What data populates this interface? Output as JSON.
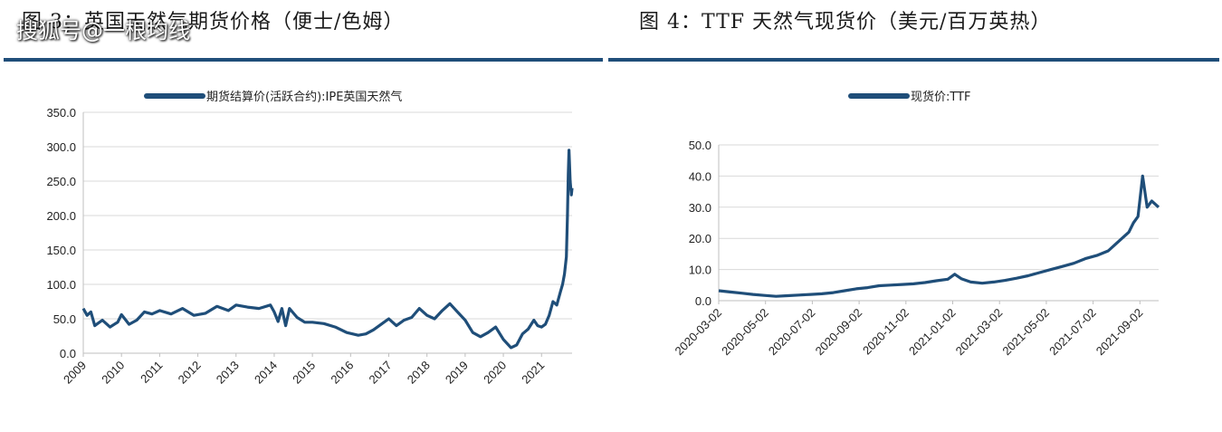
{
  "watermark": "搜狐号@一根均线",
  "charts": [
    {
      "figure_title": "图 3：英国天然气期货价格（便士/色姆）",
      "chart_data": {
        "type": "line",
        "legend_label": "期货结算价(活跃合约):IPE英国天然气",
        "x_ticks": [
          "2009",
          "2010",
          "2011",
          "2012",
          "2013",
          "2014",
          "2015",
          "2016",
          "2017",
          "2018",
          "2019",
          "2020",
          "2021"
        ],
        "y_ticks": [
          "350.0",
          "300.0",
          "250.0",
          "200.0",
          "150.0",
          "100.0",
          "50.0",
          "0.0"
        ],
        "ylim": [
          0,
          350
        ],
        "xlim": [
          2009.0,
          2021.8
        ],
        "grid": "horizontal",
        "color": "#1f4e79",
        "x": [
          2009.0,
          2009.1,
          2009.2,
          2009.3,
          2009.5,
          2009.7,
          2009.9,
          2010.0,
          2010.2,
          2010.4,
          2010.6,
          2010.8,
          2011.0,
          2011.3,
          2011.6,
          2011.9,
          2012.2,
          2012.5,
          2012.8,
          2013.0,
          2013.3,
          2013.6,
          2013.9,
          2014.0,
          2014.1,
          2014.2,
          2014.3,
          2014.4,
          2014.6,
          2014.8,
          2015.0,
          2015.3,
          2015.6,
          2015.9,
          2016.2,
          2016.4,
          2016.6,
          2016.8,
          2017.0,
          2017.2,
          2017.4,
          2017.6,
          2017.8,
          2018.0,
          2018.2,
          2018.4,
          2018.6,
          2018.8,
          2019.0,
          2019.2,
          2019.4,
          2019.6,
          2019.8,
          2020.0,
          2020.2,
          2020.35,
          2020.5,
          2020.65,
          2020.8,
          2020.9,
          2021.0,
          2021.1,
          2021.2,
          2021.3,
          2021.4,
          2021.5,
          2021.55,
          2021.6,
          2021.65,
          2021.68,
          2021.7,
          2021.72,
          2021.75,
          2021.78,
          2021.8
        ],
        "values": [
          65,
          55,
          60,
          40,
          48,
          38,
          45,
          56,
          42,
          48,
          60,
          57,
          62,
          57,
          65,
          55,
          58,
          68,
          62,
          70,
          67,
          65,
          70,
          60,
          46,
          65,
          40,
          65,
          52,
          45,
          45,
          43,
          38,
          30,
          26,
          28,
          34,
          42,
          50,
          40,
          48,
          52,
          65,
          55,
          50,
          62,
          72,
          60,
          48,
          30,
          24,
          30,
          38,
          20,
          8,
          12,
          28,
          35,
          48,
          40,
          38,
          42,
          55,
          75,
          70,
          90,
          100,
          115,
          140,
          200,
          260,
          295,
          250,
          230,
          240
        ]
      }
    },
    {
      "figure_title": "图 4：TTF 天然气现货价（美元/百万英热）",
      "chart_data": {
        "type": "line",
        "legend_label": "现货价:TTF",
        "x_ticks": [
          "2020-03-02",
          "2020-05-02",
          "2020-07-02",
          "2020-09-02",
          "2020-11-02",
          "2021-01-02",
          "2021-03-02",
          "2021-05-02",
          "2021-07-02",
          "2021-09-02"
        ],
        "y_ticks": [
          "50.0",
          "40.0",
          "30.0",
          "20.0",
          "10.0",
          "0.0"
        ],
        "ylim": [
          0,
          50
        ],
        "xlim": [
          0,
          19.2
        ],
        "grid": "horizontal",
        "color": "#1f4e79",
        "x": [
          0,
          0.5,
          1,
          1.5,
          2,
          2.5,
          3,
          3.5,
          4,
          4.5,
          5,
          5.5,
          6,
          6.5,
          7,
          7.5,
          8,
          8.5,
          9,
          9.5,
          10,
          10.3,
          10.6,
          11,
          11.5,
          12,
          12.5,
          13,
          13.5,
          14,
          14.5,
          15,
          15.5,
          16,
          16.5,
          17,
          17.3,
          17.6,
          17.9,
          18.1,
          18.3,
          18.5,
          18.7,
          18.9,
          19.2
        ],
        "values": [
          3.2,
          2.8,
          2.4,
          2.0,
          1.7,
          1.4,
          1.6,
          1.8,
          2.0,
          2.2,
          2.6,
          3.2,
          3.8,
          4.2,
          4.8,
          5.0,
          5.2,
          5.4,
          5.8,
          6.4,
          6.9,
          8.5,
          7.0,
          6.0,
          5.6,
          6.0,
          6.5,
          7.2,
          8.0,
          9.0,
          10.0,
          11.0,
          12.0,
          13.5,
          14.5,
          16.0,
          18.0,
          20.0,
          22.0,
          25.0,
          27.0,
          40.0,
          30.0,
          32.0,
          30.0
        ]
      }
    }
  ]
}
